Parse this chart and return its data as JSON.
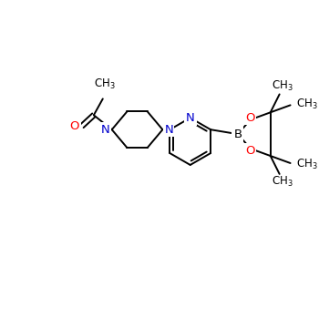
{
  "bg_color": "#ffffff",
  "bond_color": "#000000",
  "n_color": "#0000cd",
  "o_color": "#ff0000",
  "b_color": "#000000",
  "line_width": 1.4,
  "font_size": 8.5,
  "fig_width": 3.5,
  "fig_height": 3.5,
  "dpi": 100,
  "xlim": [
    0,
    350
  ],
  "ylim": [
    0,
    350
  ]
}
